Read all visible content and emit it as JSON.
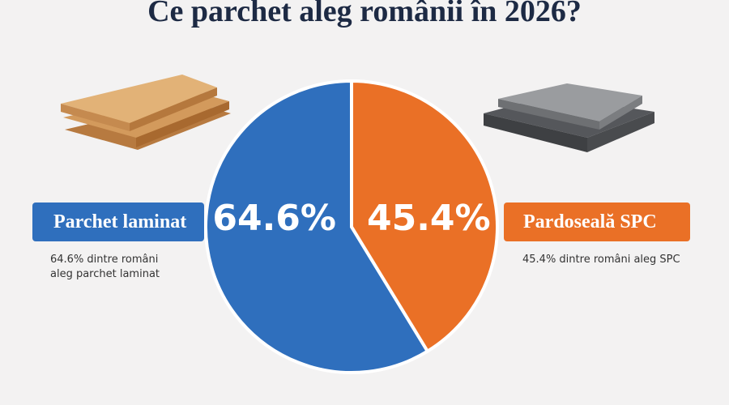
{
  "chart_data": {
    "type": "pie",
    "title": "Ce parchet aleg românii în 2026?",
    "categories": [
      "Parchet laminat",
      "Pardoseală SPC"
    ],
    "values": [
      64.6,
      45.4
    ],
    "value_labels": [
      "64.6%",
      "45.4%"
    ],
    "colors": [
      "#2f6fbd",
      "#ea7026"
    ],
    "annotations": [
      "64.6% dintre români aleg parchet laminat",
      "45.4% dintre români aleg SPC"
    ]
  }
}
